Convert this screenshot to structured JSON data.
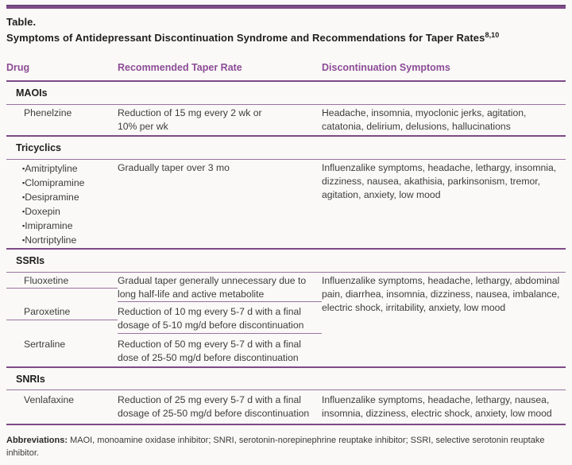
{
  "colors": {
    "accent": "#7d4a87",
    "thin_line": "#9a72a2",
    "header_text": "#8c4c96",
    "title_text": "#1e1e1e",
    "body_text": "#3d3d3d",
    "page_bg": "#faf9f7"
  },
  "caption": {
    "label": "Table.",
    "title": "Symptoms of Antidepressant Discontinuation Syndrome and Recommendations for Taper Rates",
    "superscript": "8,10"
  },
  "columns": {
    "drug": "Drug",
    "taper": "Recommended Taper Rate",
    "symptoms": "Discontinuation Symptoms"
  },
  "bullet": "▪",
  "table": {
    "maois": {
      "category": "MAOIs",
      "phenelzine": {
        "drug": "Phenelzine",
        "taper": "Reduction of 15 mg every 2 wk or\n10% per wk",
        "symptoms": "Headache, insomnia, myoclonic jerks, agitation,\ncatatonia, delirium, delusions, hallucinations"
      }
    },
    "tricyclics": {
      "category": "Tricyclics",
      "drugs": [
        "Amitriptyline",
        "Clomipramine",
        "Desipramine",
        "Doxepin",
        "Imipramine",
        "Nortriptyline"
      ],
      "taper": "Gradually taper over 3 mo",
      "symptoms": "Influenzalike symptoms, headache, lethargy, insomnia,\ndizziness, nausea, akathisia, parkinsonism, tremor,\nagitation, anxiety, low mood"
    },
    "ssris": {
      "category": "SSRIs",
      "symptoms": "Influenzalike symptoms, headache, lethargy, abdominal\npain, diarrhea, insomnia, dizziness, nausea, imbalance,\nelectric shock, irritability, anxiety, low mood",
      "fluoxetine": {
        "drug": "Fluoxetine",
        "taper": "Gradual taper generally unnecessary due to\nlong half-life and active metabolite"
      },
      "paroxetine": {
        "drug": "Paroxetine",
        "taper": "Reduction of 10 mg every 5-7 d with a final\ndosage of 5-10 mg/d before discontinuation"
      },
      "sertraline": {
        "drug": "Sertraline",
        "taper": "Reduction of 50 mg every 5-7 d with a final\ndose of 25-50 mg/d before discontinuation"
      }
    },
    "snris": {
      "category": "SNRIs",
      "venlafaxine": {
        "drug": "Venlafaxine",
        "taper": "Reduction of 25 mg every 5-7 d with a final\ndosage of 25-50 mg/d before discontinuation",
        "symptoms": "Influenzalike symptoms, headache, lethargy, nausea,\ninsomnia, dizziness, electric shock, anxiety, low mood"
      }
    }
  },
  "footnote": {
    "label": "Abbreviations:",
    "text": " MAOI, monoamine oxidase inhibitor; SNRI, serotonin-norepinephrine reuptake inhibitor; SSRI, selective serotonin reuptake\ninhibitor."
  }
}
